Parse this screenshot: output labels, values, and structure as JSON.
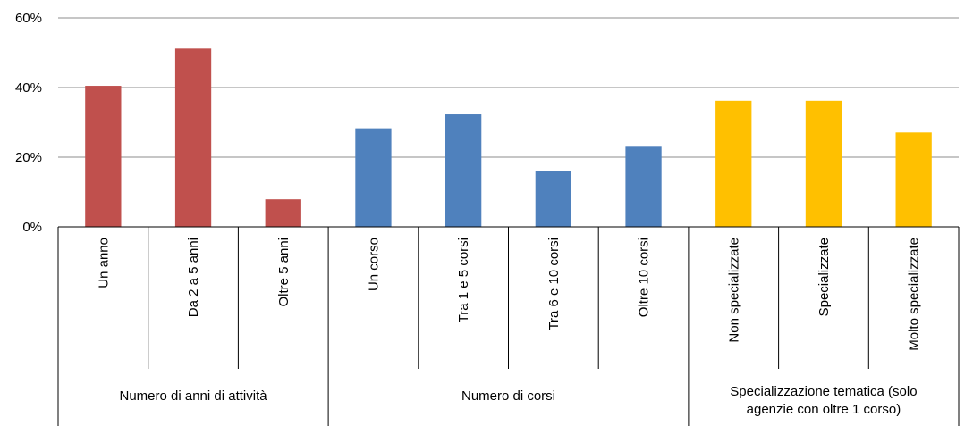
{
  "chart_data": {
    "type": "bar",
    "ylim": [
      0,
      60
    ],
    "y_ticks": [
      "0%",
      "20%",
      "40%",
      "60%"
    ],
    "y_tick_values": [
      0,
      20,
      40,
      60
    ],
    "grid": true,
    "groups": [
      {
        "label_lines": [
          "Numero di anni di attività"
        ],
        "color": "#C0504D",
        "categories": [
          "Un anno",
          "Da 2 a 5 anni",
          "Oltre 5 anni"
        ],
        "values": [
          40.5,
          51.2,
          7.9
        ]
      },
      {
        "label_lines": [
          "Numero di corsi"
        ],
        "color": "#4F81BD",
        "categories": [
          "Un corso",
          "Tra 1 e 5 corsi",
          "Tra 6 e 10 corsi",
          "Oltre 10 corsi"
        ],
        "values": [
          28.3,
          32.3,
          15.9,
          23.0
        ]
      },
      {
        "label_lines": [
          "Specializzazione tematica (solo",
          "agenzie con oltre 1 corso)"
        ],
        "color": "#FFC000",
        "categories": [
          "Non specializzate",
          "Specializzate",
          "Molto specializzate"
        ],
        "values": [
          36.2,
          36.2,
          27.1
        ]
      }
    ]
  }
}
